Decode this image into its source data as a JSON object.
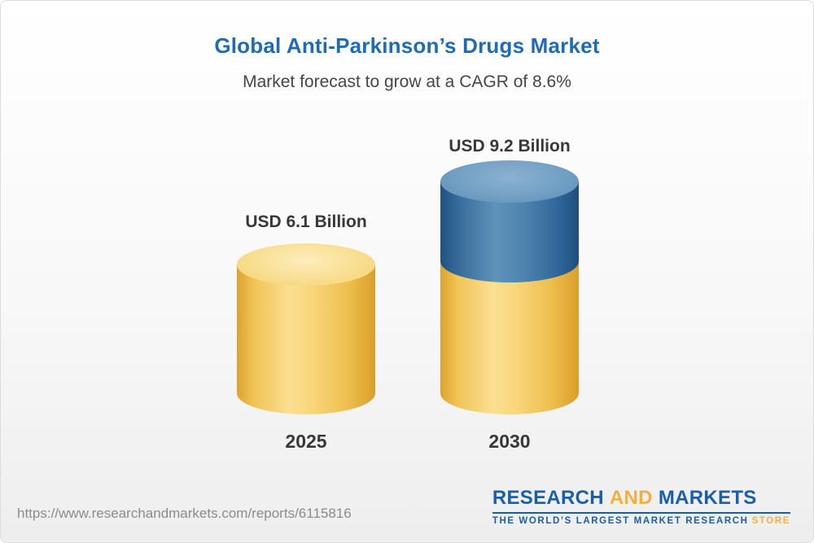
{
  "header": {
    "title": "Global Anti-Parkinson’s Drugs Market",
    "subtitle": "Market forecast to grow at a CAGR of 8.6%"
  },
  "chart_data": {
    "type": "bar",
    "title": "Global Anti-Parkinson’s Drugs Market",
    "subtitle": "Market forecast to grow at a CAGR of 8.6%",
    "unit": "USD Billion",
    "cagr_percent": 8.6,
    "categories": [
      "2025",
      "2030"
    ],
    "values": [
      6.1,
      9.2
    ],
    "value_labels": [
      "USD 6.1 Billion",
      "USD 9.2 Billion"
    ],
    "legend_position": "none",
    "grid": false,
    "colors": {
      "bar_base": "#F3C95B",
      "bar_growth_segment": "#4A7FA9",
      "title_text": "#1D6CB5"
    }
  },
  "footer": {
    "source_url": "https://www.researchandmarkets.com/reports/6115816",
    "logo": {
      "name_part1": "RESEARCH",
      "name_part2": "AND",
      "name_part3": "MARKETS",
      "tagline_main": "THE WORLD’S LARGEST MARKET RESEARCH",
      "tagline_accent": "STORE"
    }
  }
}
